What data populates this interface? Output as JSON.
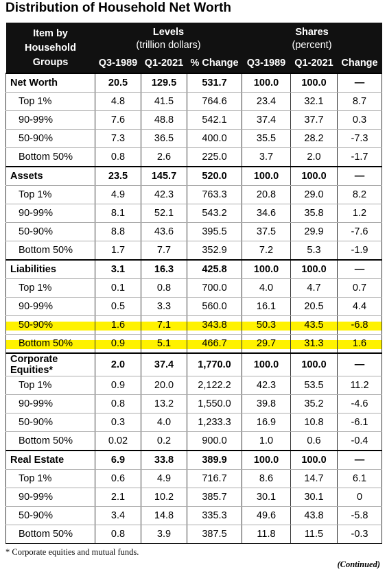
{
  "title": "Distribution of Household Net Worth",
  "header": {
    "item": "Item by Household Groups",
    "groups": [
      {
        "title": "Levels",
        "subtitle": "(trillion dollars)"
      },
      {
        "title": "Shares",
        "subtitle": "(percent)"
      }
    ],
    "columns": [
      "Q3-1989",
      "Q1-2021",
      "% Change",
      "Q3-1989",
      "Q1-2021",
      "Change"
    ]
  },
  "table": {
    "rows": [
      [
        "Net Worth",
        "20.5",
        "129.5",
        "531.7",
        "100.0",
        "100.0",
        "—"
      ],
      [
        "Top 1%",
        "4.8",
        "41.5",
        "764.6",
        "23.4",
        "32.1",
        "8.7"
      ],
      [
        "90-99%",
        "7.6",
        "48.8",
        "542.1",
        "37.4",
        "37.7",
        "0.3"
      ],
      [
        "50-90%",
        "7.3",
        "36.5",
        "400.0",
        "35.5",
        "28.2",
        "-7.3"
      ],
      [
        "Bottom 50%",
        "0.8",
        "2.6",
        "225.0",
        "3.7",
        "2.0",
        "-1.7"
      ],
      [
        "Assets",
        "23.5",
        "145.7",
        "520.0",
        "100.0",
        "100.0",
        "—"
      ],
      [
        "Top 1%",
        "4.9",
        "42.3",
        "763.3",
        "20.8",
        "29.0",
        "8.2"
      ],
      [
        "90-99%",
        "8.1",
        "52.1",
        "543.2",
        "34.6",
        "35.8",
        "1.2"
      ],
      [
        "50-90%",
        "8.8",
        "43.6",
        "395.5",
        "37.5",
        "29.9",
        "-7.6"
      ],
      [
        "Bottom 50%",
        "1.7",
        "7.7",
        "352.9",
        "7.2",
        "5.3",
        "-1.9"
      ],
      [
        "Liabilities",
        "3.1",
        "16.3",
        "425.8",
        "100.0",
        "100.0",
        "—"
      ],
      [
        "Top 1%",
        "0.1",
        "0.8",
        "700.0",
        "4.0",
        "4.7",
        "0.7"
      ],
      [
        "90-99%",
        "0.5",
        "3.3",
        "560.0",
        "16.1",
        "20.5",
        "4.4"
      ],
      [
        "50-90%",
        "1.6",
        "7.1",
        "343.8",
        "50.3",
        "43.5",
        "-6.8"
      ],
      [
        "Bottom 50%",
        "0.9",
        "5.1",
        "466.7",
        "29.7",
        "31.3",
        "1.6"
      ],
      [
        "Corporate Equities*",
        "2.0",
        "37.4",
        "1,770.0",
        "100.0",
        "100.0",
        "—"
      ],
      [
        "Top 1%",
        "0.9",
        "20.0",
        "2,122.2",
        "42.3",
        "53.5",
        "11.2"
      ],
      [
        "90-99%",
        "0.8",
        "13.2",
        "1,550.0",
        "39.8",
        "35.2",
        "-4.6"
      ],
      [
        "50-90%",
        "0.3",
        "4.0",
        "1,233.3",
        "16.9",
        "10.8",
        "-6.1"
      ],
      [
        "Bottom 50%",
        "0.02",
        "0.2",
        "900.0",
        "1.0",
        "0.6",
        "-0.4"
      ],
      [
        "Real Estate",
        "6.9",
        "33.8",
        "389.9",
        "100.0",
        "100.0",
        "—"
      ],
      [
        "Top 1%",
        "0.6",
        "4.9",
        "716.7",
        "8.6",
        "14.7",
        "6.1"
      ],
      [
        "90-99%",
        "2.1",
        "10.2",
        "385.7",
        "30.1",
        "30.1",
        "0"
      ],
      [
        "50-90%",
        "3.4",
        "14.8",
        "335.3",
        "49.6",
        "43.8",
        "-5.8"
      ],
      [
        "Bottom 50%",
        "0.8",
        "3.9",
        "387.5",
        "11.8",
        "11.5",
        "-0.3"
      ]
    ],
    "highlighted_rows": [
      13,
      14
    ]
  },
  "footnote": "* Corporate equities and mutual funds.",
  "continued": "(Continued)"
}
